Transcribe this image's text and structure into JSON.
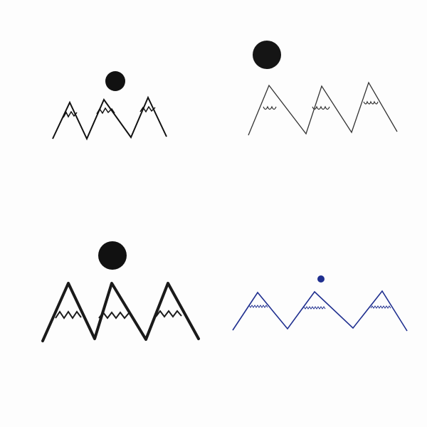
{
  "scene": {
    "background_color": "#fdfdfd",
    "drawings": [
      {
        "id": "top-left",
        "ink_color": "#111111",
        "sun_icon": "sun-icon",
        "mountain_count": 3,
        "snowcap_style": "zigzag"
      },
      {
        "id": "top-right",
        "ink_color": "#222222",
        "sun_icon": "sun-icon",
        "mountain_count": 3,
        "snowcap_style": "scallop"
      },
      {
        "id": "bottom-left",
        "ink_color": "#1a1a1a",
        "sun_icon": "sun-icon",
        "mountain_count": 3,
        "snowcap_style": "zigzag"
      },
      {
        "id": "bottom-right",
        "ink_color": "#1f2f8f",
        "sun_icon": "sun-icon",
        "mountain_count": 3,
        "snowcap_style": "fine-zigzag"
      }
    ]
  }
}
